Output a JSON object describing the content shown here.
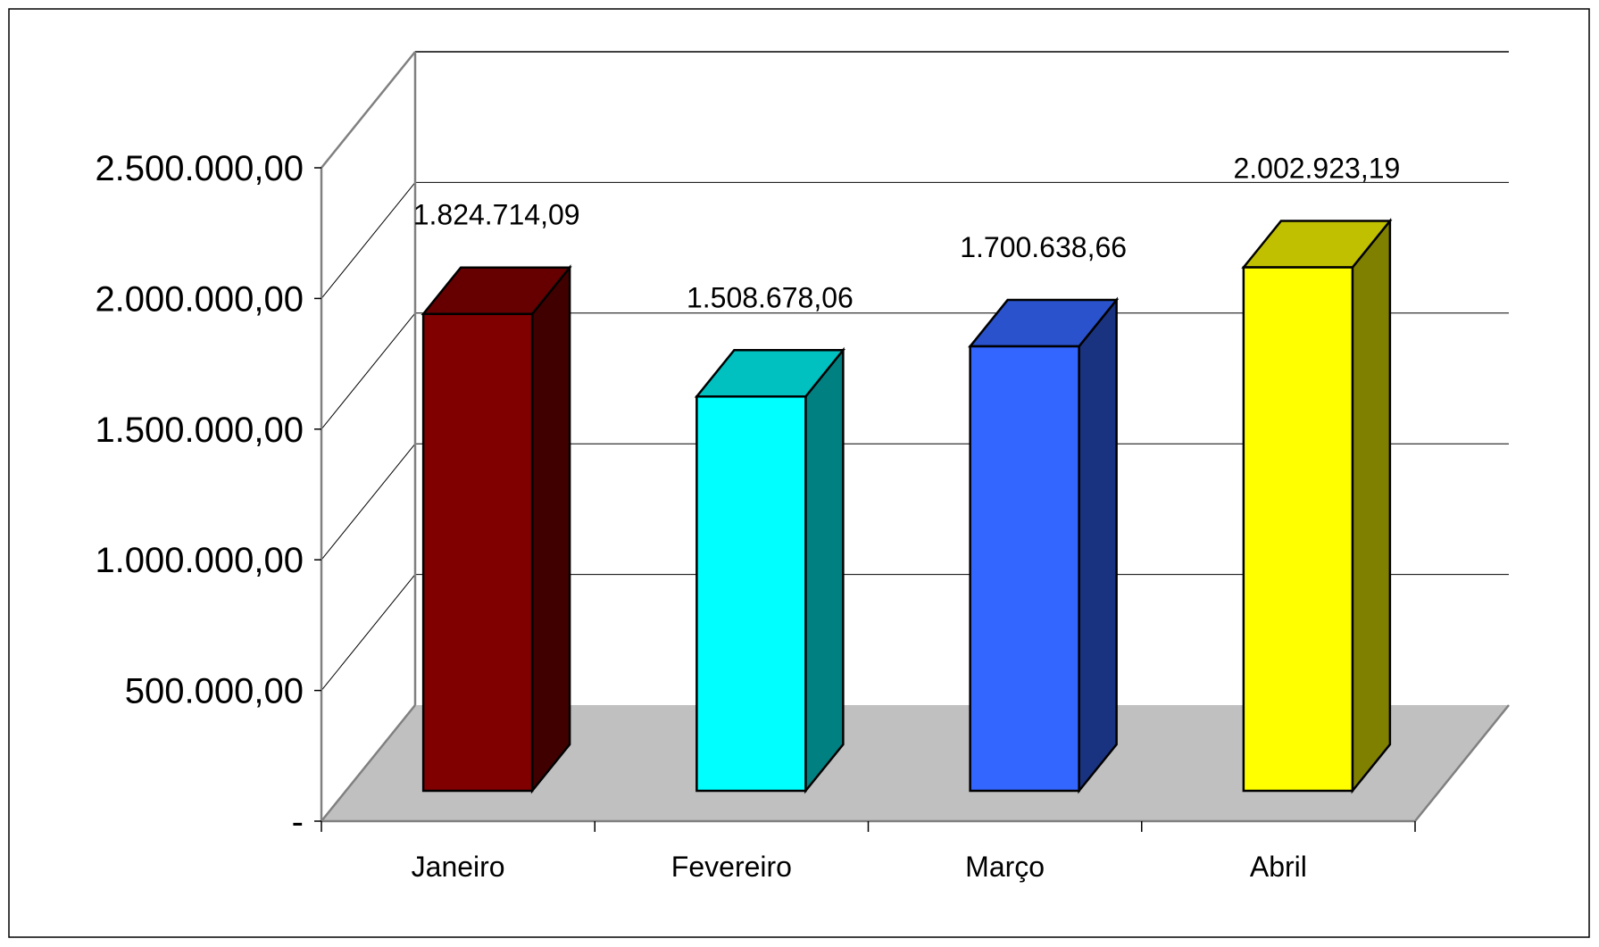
{
  "chart_data": {
    "type": "bar",
    "categories": [
      "Janeiro",
      "Fevereiro",
      "Março",
      "Abril"
    ],
    "values": [
      1824714.09,
      1508678.06,
      1700638.66,
      2002923.19
    ],
    "data_labels": [
      "1.824.714,09",
      "1.508.678,06",
      "1.700.638,66",
      "2.002.923,19"
    ],
    "y_ticks": [
      {
        "value": 0,
        "label": "-"
      },
      {
        "value": 500000,
        "label": "500.000,00"
      },
      {
        "value": 1000000,
        "label": "1.000.000,00"
      },
      {
        "value": 1500000,
        "label": "1.500.000,00"
      },
      {
        "value": 2000000,
        "label": "2.000.000,00"
      },
      {
        "value": 2500000,
        "label": "2.500.000,00"
      }
    ],
    "ylim": [
      0,
      2500000
    ],
    "title": "",
    "xlabel": "",
    "ylabel": "",
    "grid": true,
    "three_d": true,
    "colors": {
      "front": [
        "#800000",
        "#00ffff",
        "#3366ff",
        "#ffff00"
      ],
      "side": [
        "#400000",
        "#008080",
        "#1a3380",
        "#808000"
      ],
      "top": [
        "#660000",
        "#00c0c0",
        "#2952cc",
        "#c0c000"
      ],
      "floor": "#c0c0c0",
      "wall_edge": "#808080"
    }
  }
}
